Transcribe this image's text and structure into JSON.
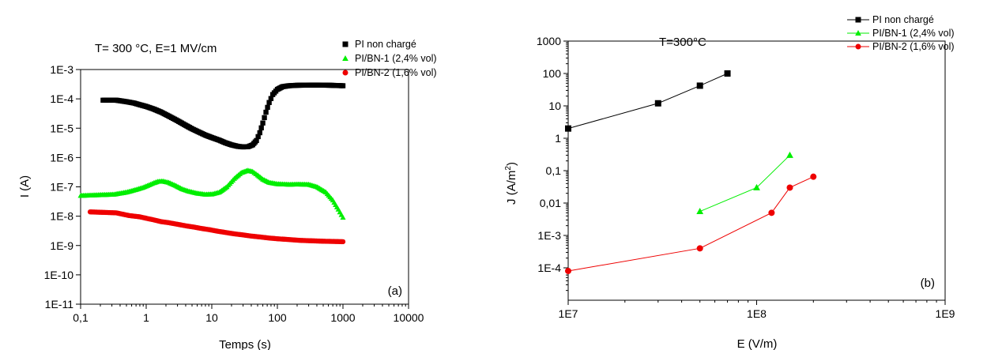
{
  "chart_data": [
    {
      "type": "scatter",
      "panel_label": "(a)",
      "title": "T= 300 °C, E=1 MV/cm",
      "xlabel": "Temps (s)",
      "ylabel": "I (A)",
      "x_scale": "log",
      "y_scale": "log",
      "xlim": [
        0.1,
        10000
      ],
      "ylim": [
        1e-11,
        0.001
      ],
      "x_ticks": [
        0.1,
        1,
        10,
        100,
        1000,
        10000
      ],
      "x_tick_labels": [
        "0,1",
        "1",
        "10",
        "100",
        "1000",
        "10000"
      ],
      "y_ticks": [
        1e-11,
        1e-10,
        1e-09,
        1e-08,
        1e-07,
        1e-06,
        1e-05,
        0.0001,
        0.001
      ],
      "y_tick_labels": [
        "1E-11",
        "1E-10",
        "1E-9",
        "1E-8",
        "1E-7",
        "1E-6",
        "1E-5",
        "1E-4",
        "1E-3"
      ],
      "legend_position": "top-right",
      "grid": false,
      "series": [
        {
          "name": "PI non chargé",
          "color": "#000000",
          "marker": "square",
          "points": [
            [
              0.22,
              9e-05
            ],
            [
              0.35,
              9e-05
            ],
            [
              0.5,
              8e-05
            ],
            [
              0.65,
              7.2e-05
            ],
            [
              0.8,
              6.3e-05
            ],
            [
              1.0,
              5.5e-05
            ],
            [
              1.3,
              4.5e-05
            ],
            [
              1.7,
              3.5e-05
            ],
            [
              2.2,
              2.6e-05
            ],
            [
              3,
              1.8e-05
            ],
            [
              4,
              1.25e-05
            ],
            [
              5,
              9.5e-06
            ],
            [
              6.5,
              7.2e-06
            ],
            [
              8,
              5.8e-06
            ],
            [
              10,
              4.8e-06
            ],
            [
              13,
              3.9e-06
            ],
            [
              16,
              3.2e-06
            ],
            [
              20,
              2.7e-06
            ],
            [
              25,
              2.4e-06
            ],
            [
              30,
              2.3e-06
            ],
            [
              36,
              2.35e-06
            ],
            [
              42,
              2.7e-06
            ],
            [
              48,
              3.8e-06
            ],
            [
              54,
              7e-06
            ],
            [
              60,
              1.5e-05
            ],
            [
              67,
              3.5e-05
            ],
            [
              75,
              7.5e-05
            ],
            [
              85,
              0.00014
            ],
            [
              100,
              0.00021
            ],
            [
              120,
              0.00026
            ],
            [
              150,
              0.00028
            ],
            [
              200,
              0.00029
            ],
            [
              300,
              0.000295
            ],
            [
              450,
              0.000295
            ],
            [
              650,
              0.00029
            ],
            [
              1000,
              0.00028
            ]
          ]
        },
        {
          "name": "PI/BN-1 (2,4% vol)",
          "color": "#00ee00",
          "marker": "triangle",
          "points": [
            [
              0.1,
              5e-08
            ],
            [
              0.32,
              5.5e-08
            ],
            [
              0.5,
              6.5e-08
            ],
            [
              0.7,
              8e-08
            ],
            [
              0.9,
              9.5e-08
            ],
            [
              1.1,
              1.15e-07
            ],
            [
              1.3,
              1.35e-07
            ],
            [
              1.5,
              1.5e-07
            ],
            [
              1.8,
              1.55e-07
            ],
            [
              2.2,
              1.4e-07
            ],
            [
              2.8,
              1.1e-07
            ],
            [
              3.5,
              8.5e-08
            ],
            [
              4.5,
              7e-08
            ],
            [
              6,
              6e-08
            ],
            [
              8,
              5.5e-08
            ],
            [
              10,
              5.6e-08
            ],
            [
              13,
              6.5e-08
            ],
            [
              17,
              1e-07
            ],
            [
              22,
              1.9e-07
            ],
            [
              28,
              3e-07
            ],
            [
              35,
              3.6e-07
            ],
            [
              42,
              3.3e-07
            ],
            [
              50,
              2.5e-07
            ],
            [
              60,
              1.8e-07
            ],
            [
              75,
              1.4e-07
            ],
            [
              100,
              1.25e-07
            ],
            [
              150,
              1.2e-07
            ],
            [
              200,
              1.22e-07
            ],
            [
              300,
              1.2e-07
            ],
            [
              400,
              1e-07
            ],
            [
              550,
              6.5e-08
            ],
            [
              700,
              3.5e-08
            ],
            [
              850,
              1.7e-08
            ],
            [
              1000,
              9e-09
            ]
          ]
        },
        {
          "name": "PI/BN-2 (1,6% vol)",
          "color": "#ee0000",
          "marker": "circle",
          "points": [
            [
              0.14,
              1.4e-08
            ],
            [
              0.35,
              1.3e-08
            ],
            [
              0.55,
              1.05e-08
            ],
            [
              0.8,
              9.5e-09
            ],
            [
              1.0,
              8.5e-09
            ],
            [
              1.3,
              7.5e-09
            ],
            [
              1.7,
              6.5e-09
            ],
            [
              2.2,
              6e-09
            ],
            [
              3,
              5.3e-09
            ],
            [
              4,
              4.7e-09
            ],
            [
              5.5,
              4.2e-09
            ],
            [
              7,
              3.8e-09
            ],
            [
              9,
              3.5e-09
            ],
            [
              12,
              3.1e-09
            ],
            [
              16,
              2.8e-09
            ],
            [
              22,
              2.5e-09
            ],
            [
              30,
              2.3e-09
            ],
            [
              40,
              2.1e-09
            ],
            [
              55,
              1.95e-09
            ],
            [
              75,
              1.8e-09
            ],
            [
              100,
              1.7e-09
            ],
            [
              150,
              1.6e-09
            ],
            [
              220,
              1.5e-09
            ],
            [
              330,
              1.45e-09
            ],
            [
              500,
              1.4e-09
            ],
            [
              700,
              1.38e-09
            ],
            [
              1000,
              1.35e-09
            ]
          ]
        }
      ]
    },
    {
      "type": "line",
      "panel_label": "(b)",
      "title": "T=300°C",
      "xlabel": "E (V/m)",
      "ylabel_main": "J (A/m",
      "ylabel_sup": "2",
      "ylabel_close": ")",
      "x_scale": "log",
      "y_scale": "log",
      "xlim": [
        10000000.0,
        1000000000.0
      ],
      "ylim": [
        1e-05,
        1000
      ],
      "x_ticks": [
        10000000.0,
        100000000.0,
        1000000000.0
      ],
      "x_tick_labels": [
        "1E7",
        "1E8",
        "1E9"
      ],
      "y_ticks": [
        0.0001,
        0.001,
        0.01,
        0.1,
        1,
        10,
        100,
        1000
      ],
      "y_tick_labels": [
        "1E-4",
        "1E-3",
        "0,01",
        "0,1",
        "1",
        "10",
        "100",
        "1000"
      ],
      "legend_position": "top-right",
      "grid": false,
      "series": [
        {
          "name": "PI non chargé",
          "color": "#000000",
          "marker": "square",
          "points": [
            [
              10000000.0,
              2
            ],
            [
              30000000.0,
              12
            ],
            [
              50000000.0,
              42
            ],
            [
              70000000.0,
              100
            ]
          ]
        },
        {
          "name": "PI/BN-1 (2,4% vol)",
          "color": "#00ee00",
          "marker": "triangle",
          "points": [
            [
              50000000.0,
              0.0055
            ],
            [
              100000000.0,
              0.03
            ],
            [
              150000000.0,
              0.3
            ]
          ]
        },
        {
          "name": "PI/BN-2 (1,6% vol)",
          "color": "#ee0000",
          "marker": "circle",
          "points": [
            [
              10000000.0,
              8e-05
            ],
            [
              50000000.0,
              0.0004
            ],
            [
              120000000.0,
              0.005
            ],
            [
              150000000.0,
              0.03
            ],
            [
              200000000.0,
              0.065
            ]
          ]
        }
      ]
    }
  ]
}
